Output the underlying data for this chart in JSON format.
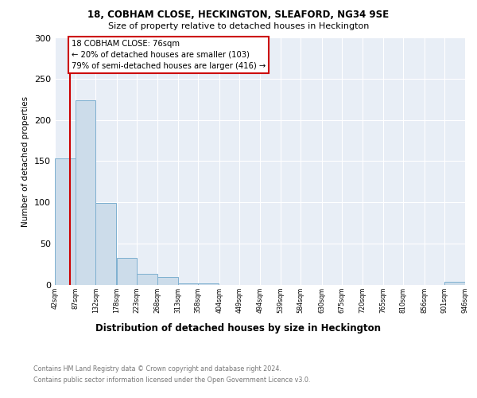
{
  "title1": "18, COBHAM CLOSE, HECKINGTON, SLEAFORD, NG34 9SE",
  "title2": "Size of property relative to detached houses in Heckington",
  "xlabel": "Distribution of detached houses by size in Heckington",
  "ylabel": "Number of detached properties",
  "footnote1": "Contains HM Land Registry data © Crown copyright and database right 2024.",
  "footnote2": "Contains public sector information licensed under the Open Government Licence v3.0.",
  "annotation_line1": "18 COBHAM CLOSE: 76sqm",
  "annotation_line2": "← 20% of detached houses are smaller (103)",
  "annotation_line3": "79% of semi-detached houses are larger (416) →",
  "property_size": 76,
  "bin_edges": [
    42,
    87,
    132,
    178,
    223,
    268,
    313,
    358,
    404,
    449,
    494,
    539,
    584,
    630,
    675,
    720,
    765,
    810,
    856,
    901,
    946
  ],
  "bar_heights": [
    153,
    224,
    99,
    32,
    13,
    9,
    1,
    1,
    0,
    0,
    0,
    0,
    0,
    0,
    0,
    0,
    0,
    0,
    0,
    3
  ],
  "bar_color": "#ccdcea",
  "bar_edge_color": "#7eb0d0",
  "vline_color": "#cc0000",
  "annotation_box_edge_color": "#cc0000",
  "background_color": "#e8eef6",
  "ylim": [
    0,
    300
  ],
  "yticks": [
    0,
    50,
    100,
    150,
    200,
    250,
    300
  ]
}
